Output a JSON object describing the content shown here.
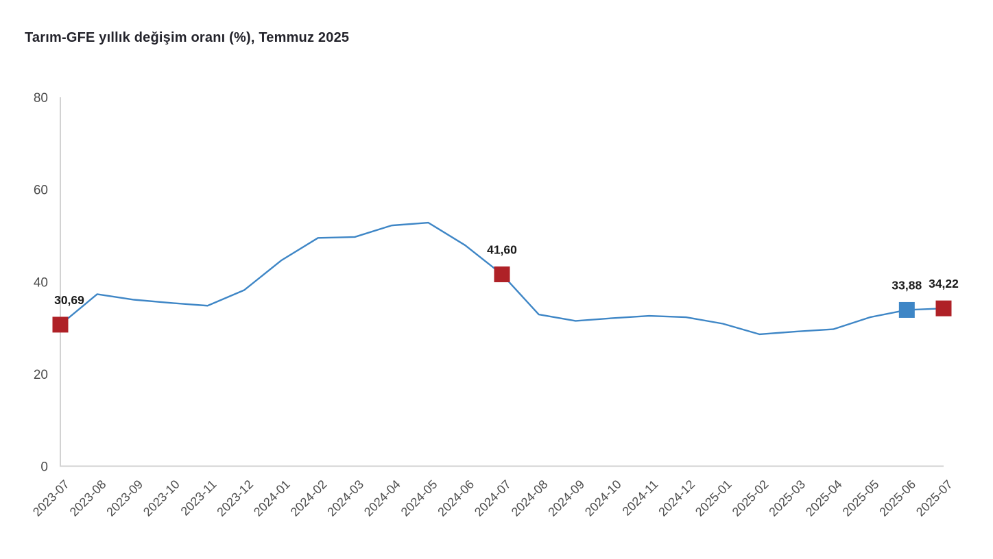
{
  "title": "Tarım-GFE yıllık değişim oranı (%), Temmuz 2025",
  "chart_data": {
    "type": "line",
    "title": "Tarım-GFE yıllık değişim oranı (%), Temmuz 2025",
    "xlabel": "",
    "ylabel": "",
    "ylim": [
      0,
      80
    ],
    "yticks": [
      0,
      20,
      40,
      60,
      80
    ],
    "grid": false,
    "legend": "none",
    "x": [
      "2023-07",
      "2023-08",
      "2023-09",
      "2023-10",
      "2023-11",
      "2023-12",
      "2024-01",
      "2024-02",
      "2024-03",
      "2024-04",
      "2024-05",
      "2024-06",
      "2024-07",
      "2024-08",
      "2024-09",
      "2024-10",
      "2024-11",
      "2024-12",
      "2025-01",
      "2025-02",
      "2025-03",
      "2025-04",
      "2025-05",
      "2025-06",
      "2025-07"
    ],
    "series": [
      {
        "name": "Tarım-GFE yıllık değişim oranı (%)",
        "values": [
          30.69,
          37.3,
          36.1,
          35.4,
          34.8,
          38.2,
          44.6,
          49.5,
          49.7,
          52.2,
          52.8,
          47.9,
          41.6,
          32.9,
          31.5,
          32.1,
          32.6,
          32.3,
          30.9,
          28.6,
          29.2,
          29.7,
          32.3,
          33.88,
          34.22
        ]
      }
    ],
    "highlights": [
      {
        "x": "2023-07",
        "value": 30.69,
        "label": "30,69",
        "color": "#AF2127"
      },
      {
        "x": "2024-07",
        "value": 41.6,
        "label": "41,60",
        "color": "#AF2127"
      },
      {
        "x": "2025-06",
        "value": 33.88,
        "label": "33,88",
        "color": "#3E86C6"
      },
      {
        "x": "2025-07",
        "value": 34.22,
        "label": "34,22",
        "color": "#AF2127"
      }
    ],
    "colors": {
      "line": "#3E86C6",
      "axis": "#d2d2d2",
      "tick_label": "#4d4d4d",
      "value_label": "#1a1a1a",
      "title": "#23232b"
    }
  }
}
